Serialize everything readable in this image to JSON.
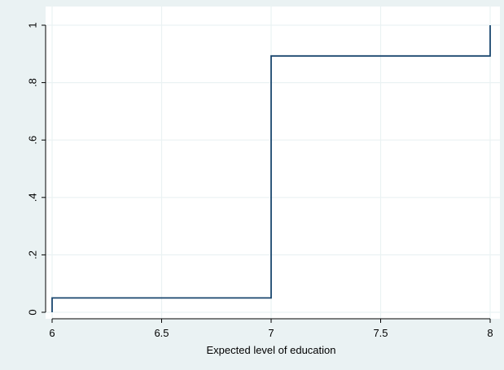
{
  "chart_data": {
    "type": "line",
    "step": true,
    "title": "",
    "xlabel": "Expected level of education",
    "ylabel": "",
    "xlim": [
      6,
      8
    ],
    "ylim": [
      0,
      1
    ],
    "xticks": [
      6,
      6.5,
      7,
      7.5,
      8
    ],
    "xtick_labels": [
      "6",
      "6.5",
      "7",
      "7.5",
      "8"
    ],
    "yticks": [
      0,
      0.2,
      0.4,
      0.6,
      0.8,
      1
    ],
    "ytick_labels": [
      "0",
      ".2",
      ".4",
      ".6",
      ".8",
      "1"
    ],
    "grid": true,
    "legend": "none",
    "series": [
      {
        "x": [
          6,
          6,
          7,
          7,
          8,
          8
        ],
        "y": [
          0,
          0.05,
          0.05,
          0.893,
          0.893,
          1
        ]
      }
    ],
    "colors": {
      "outer_background": "#eaf2f3",
      "plot_background": "#ffffff",
      "grid": "#eaf2f3",
      "line": "#1a476f",
      "axis": "#000000"
    }
  }
}
